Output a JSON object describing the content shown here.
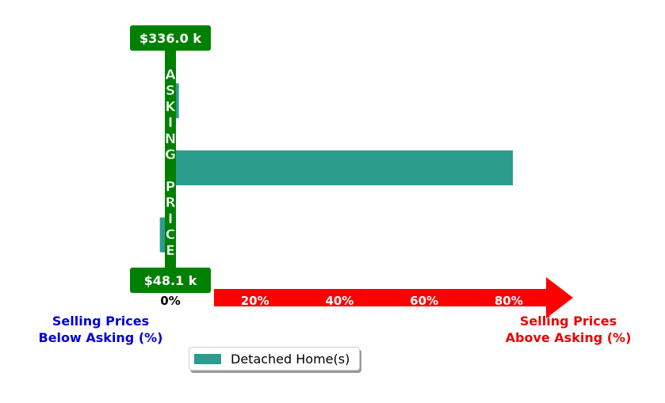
{
  "chart_data": {
    "type": "bar",
    "orientation": "horizontal",
    "series": [
      {
        "name": "Detached Home(s)",
        "color": "#2a9d8f",
        "bars": [
          {
            "value": 2
          },
          {
            "value": 81
          },
          {
            "value": -2.5
          }
        ]
      }
    ],
    "x_ticks": [
      "0%",
      "20%",
      "40%",
      "60%",
      "80%"
    ],
    "xlim": [
      -3,
      95
    ],
    "top_price_label": "$336.0 k",
    "bottom_price_label": "$48.1 k",
    "vertical_label": "ASKING PRICE",
    "left_caption": [
      "Selling Prices",
      "Below Asking (%)"
    ],
    "right_caption": [
      "Selling Prices",
      "Above Asking (%)"
    ],
    "colors": {
      "asking_line": "#008000",
      "arrow": "#ff0000",
      "left_caption": "#0000dd",
      "right_caption": "#ee0000",
      "bar": "#2a9d8f"
    },
    "legend_placement": "bottom-left"
  }
}
